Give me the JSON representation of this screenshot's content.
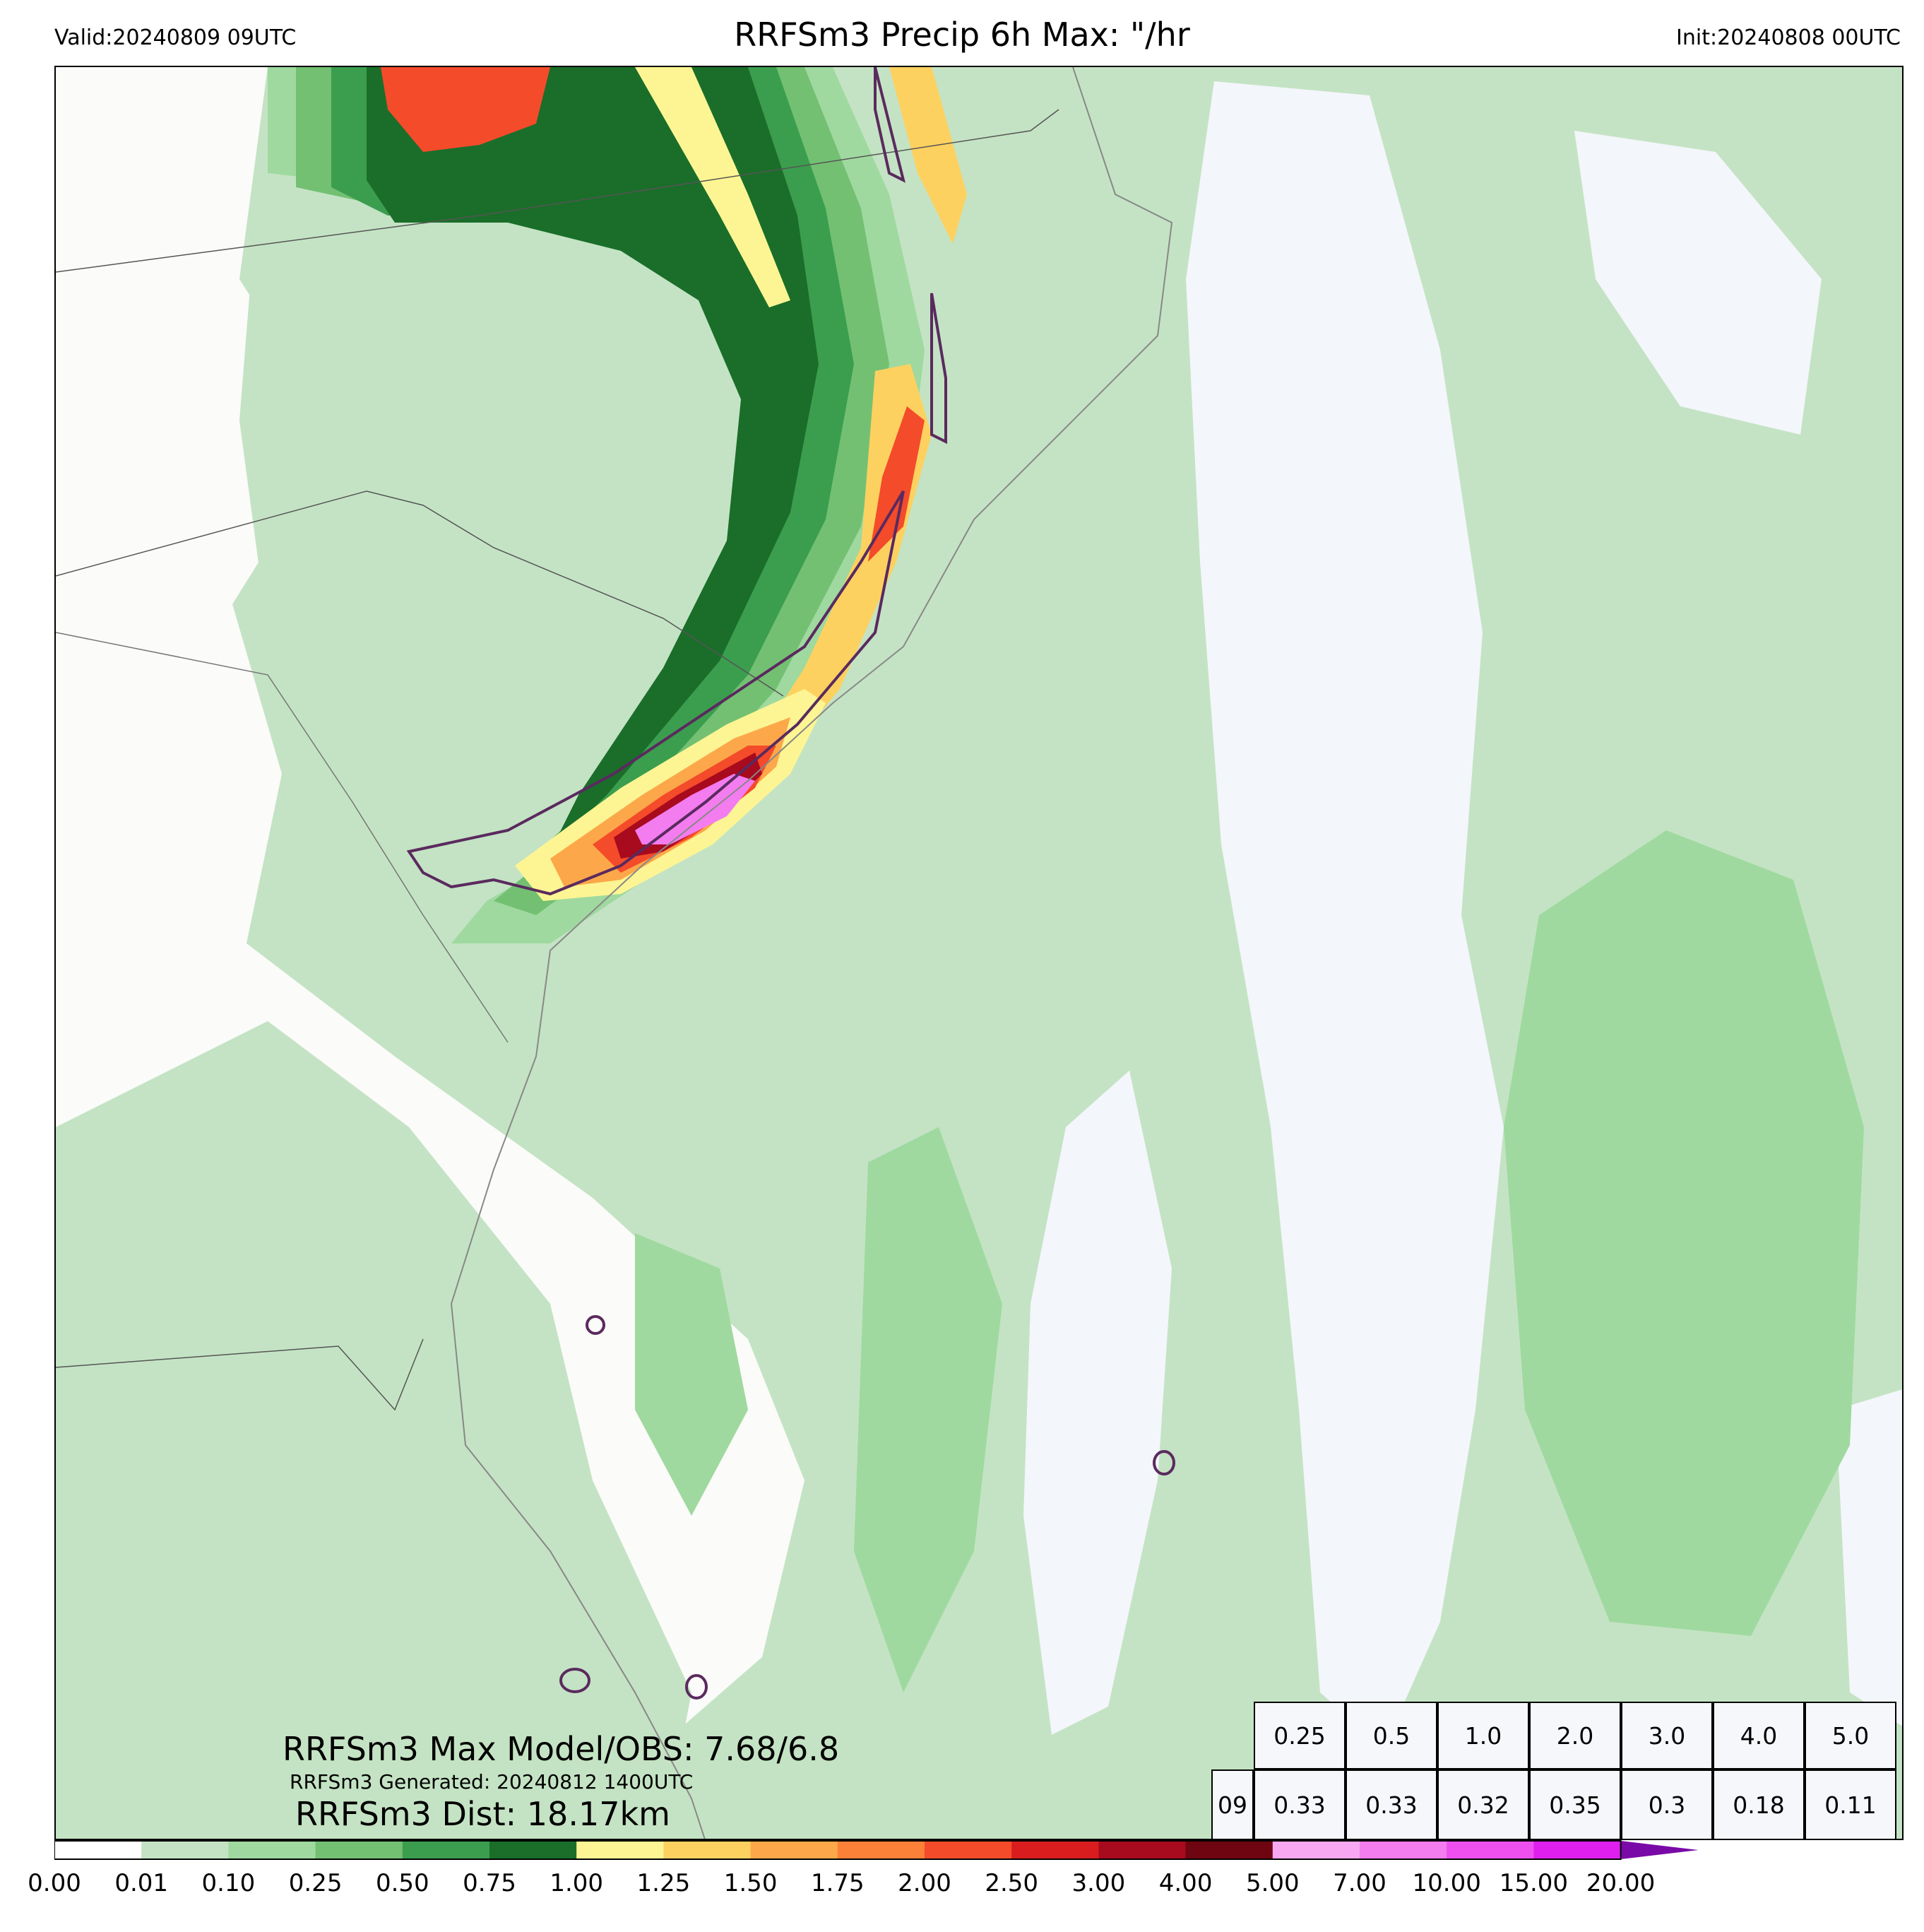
{
  "header": {
    "valid": "Valid:20240809 09UTC",
    "title": "RRFSm3 Precip 6h Max: \"/hr",
    "init": "Init:20240808 00UTC"
  },
  "annotations": {
    "max_model_obs": "RRFSm3 Max Model/OBS: 7.68/6.8",
    "generated": "RRFSm3 Generated: 20240812 1400UTC",
    "dist": "RRFSm3 Dist: 18.17km"
  },
  "stats_table": {
    "thresholds": [
      "0.25",
      "0.5",
      "1.0",
      "2.0",
      "3.0",
      "4.0",
      "5.0"
    ],
    "row_label": "09",
    "values": [
      "0.33",
      "0.33",
      "0.32",
      "0.35",
      "0.3",
      "0.18",
      "0.11"
    ]
  },
  "colorbar": {
    "ticks": [
      "0.00",
      "0.01",
      "0.10",
      "0.25",
      "0.50",
      "0.75",
      "1.00",
      "1.25",
      "1.50",
      "1.75",
      "2.00",
      "2.50",
      "3.00",
      "4.00",
      "5.00",
      "7.00",
      "10.00",
      "15.00",
      "20.00"
    ],
    "colors": [
      "#ffffff",
      "#c4e3c4",
      "#9fd99f",
      "#73c073",
      "#3b9e4e",
      "#1a6e2a",
      "#fdf593",
      "#fdd160",
      "#fca84a",
      "#fb8038",
      "#f44b2a",
      "#d91d1e",
      "#a80a1e",
      "#6e0510",
      "#f7a8f0",
      "#f37cef",
      "#ee50ef",
      "#de1fee",
      "#9b0fd0"
    ],
    "extend_color": "#7a0aa8"
  },
  "map_colors": {
    "ocean_base": "#c4e3c4",
    "land_dry": "#fbfbf9",
    "dry_patch": "#f3f6fb",
    "obs_contour": "#5a2a5e"
  }
}
